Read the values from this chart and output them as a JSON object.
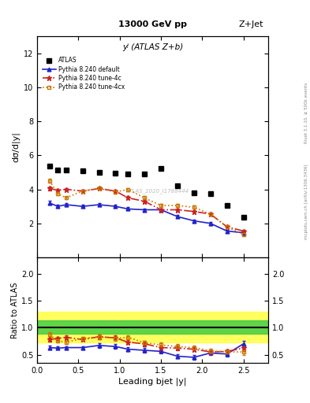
{
  "title_center": "13000 GeV pp",
  "title_right": "Z+Jet",
  "panel_title": "yʲ (ATLAS Z+b)",
  "ylabel_main": "dσ/d|y|",
  "ylabel_ratio": "Ratio to ATLAS",
  "xlabel": "Leading bjet |y|",
  "right_label_top": "Rivet 3.1.10, ≥ 500k events",
  "right_label_mid": "mcplots.cern.ch [arXiv:1306.3436]",
  "watermark": "ATLAS_2020_I1788444",
  "atlas_x": [
    0.15,
    0.25,
    0.35,
    0.55,
    0.75,
    0.95,
    1.1,
    1.3,
    1.5,
    1.7,
    1.9,
    2.1,
    2.3,
    2.5
  ],
  "atlas_y": [
    5.35,
    5.15,
    5.15,
    5.1,
    5.0,
    4.95,
    4.9,
    4.9,
    5.25,
    4.2,
    3.8,
    3.75,
    3.05,
    2.35
  ],
  "x_pts": [
    0.15,
    0.25,
    0.35,
    0.55,
    0.75,
    0.95,
    1.1,
    1.3,
    1.5,
    1.7,
    1.9,
    2.1,
    2.3,
    2.5
  ],
  "y_default": [
    3.2,
    3.0,
    3.1,
    3.0,
    3.1,
    3.0,
    2.85,
    2.8,
    2.8,
    2.4,
    2.15,
    2.0,
    1.55,
    1.45
  ],
  "yerr_default": [
    0.12,
    0.08,
    0.08,
    0.08,
    0.09,
    0.09,
    0.09,
    0.09,
    0.09,
    0.09,
    0.09,
    0.09,
    0.09,
    0.09
  ],
  "y_tune4c": [
    4.05,
    3.95,
    4.0,
    3.9,
    4.05,
    3.9,
    3.5,
    3.3,
    2.8,
    2.8,
    2.7,
    2.55,
    1.8,
    1.55
  ],
  "yerr_tune4c": [
    0.12,
    0.08,
    0.08,
    0.08,
    0.09,
    0.09,
    0.09,
    0.09,
    0.09,
    0.09,
    0.09,
    0.09,
    0.09,
    0.09
  ],
  "y_tune4cx": [
    4.5,
    3.75,
    3.5,
    3.9,
    4.05,
    3.85,
    4.0,
    3.5,
    3.05,
    3.05,
    2.95,
    2.55,
    1.8,
    1.35
  ],
  "yerr_tune4cx": [
    0.12,
    0.08,
    0.08,
    0.08,
    0.09,
    0.09,
    0.09,
    0.09,
    0.09,
    0.09,
    0.09,
    0.09,
    0.09,
    0.09
  ],
  "ratio_default": [
    0.63,
    0.62,
    0.63,
    0.63,
    0.67,
    0.65,
    0.6,
    0.58,
    0.56,
    0.47,
    0.45,
    0.53,
    0.51,
    0.7
  ],
  "ratio_err_default": [
    0.04,
    0.03,
    0.03,
    0.03,
    0.04,
    0.04,
    0.04,
    0.04,
    0.04,
    0.04,
    0.04,
    0.04,
    0.04,
    0.05
  ],
  "ratio_tune4c": [
    0.78,
    0.8,
    0.82,
    0.78,
    0.83,
    0.81,
    0.73,
    0.7,
    0.63,
    0.62,
    0.6,
    0.55,
    0.56,
    0.62
  ],
  "ratio_err_tune4c": [
    0.04,
    0.03,
    0.03,
    0.03,
    0.04,
    0.04,
    0.04,
    0.04,
    0.04,
    0.04,
    0.04,
    0.04,
    0.04,
    0.05
  ],
  "ratio_tune4cx": [
    0.87,
    0.75,
    0.73,
    0.8,
    0.83,
    0.8,
    0.82,
    0.72,
    0.68,
    0.65,
    0.63,
    0.57,
    0.55,
    0.55
  ],
  "ratio_err_tune4cx": [
    0.04,
    0.03,
    0.03,
    0.03,
    0.04,
    0.04,
    0.04,
    0.04,
    0.04,
    0.04,
    0.04,
    0.04,
    0.04,
    0.05
  ],
  "color_default": "#2222cc",
  "color_tune4c": "#cc2222",
  "color_tune4cx": "#cc7700",
  "xlim": [
    0.0,
    2.8
  ],
  "ylim_main": [
    0,
    13
  ],
  "yticks_main": [
    2,
    4,
    6,
    8,
    10,
    12
  ],
  "ylim_ratio": [
    0.35,
    2.3
  ],
  "yticks_ratio": [
    0.5,
    1.0,
    1.5,
    2.0
  ]
}
